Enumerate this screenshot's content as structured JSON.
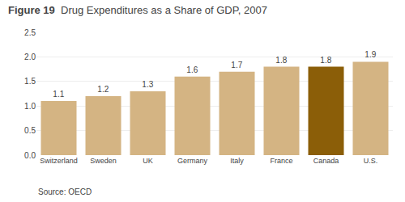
{
  "chart_data": {
    "type": "bar",
    "title": "Figure 19",
    "subtitle": "Drug Expenditures as a Share of GDP, 2007",
    "categories": [
      "Switzerland",
      "Sweden",
      "UK",
      "Germany",
      "Italy",
      "France",
      "Canada",
      "U.S."
    ],
    "values": [
      1.1,
      1.2,
      1.3,
      1.6,
      1.7,
      1.8,
      1.8,
      1.9
    ],
    "colors": [
      "#d4b483",
      "#d4b483",
      "#d4b483",
      "#d4b483",
      "#d4b483",
      "#d4b483",
      "#8b5e08",
      "#d4b483"
    ],
    "ylim": [
      0.0,
      2.5
    ],
    "yticks": [
      {
        "value": 0.0,
        "label": "0.0"
      },
      0.5,
      {
        "value": 1.0,
        "label": "1.0"
      },
      1.5,
      {
        "value": 2.0,
        "label": "2.0"
      },
      2.5
    ],
    "grid": true,
    "data_labels": true,
    "annotations": [
      "Source: OECD"
    ]
  }
}
